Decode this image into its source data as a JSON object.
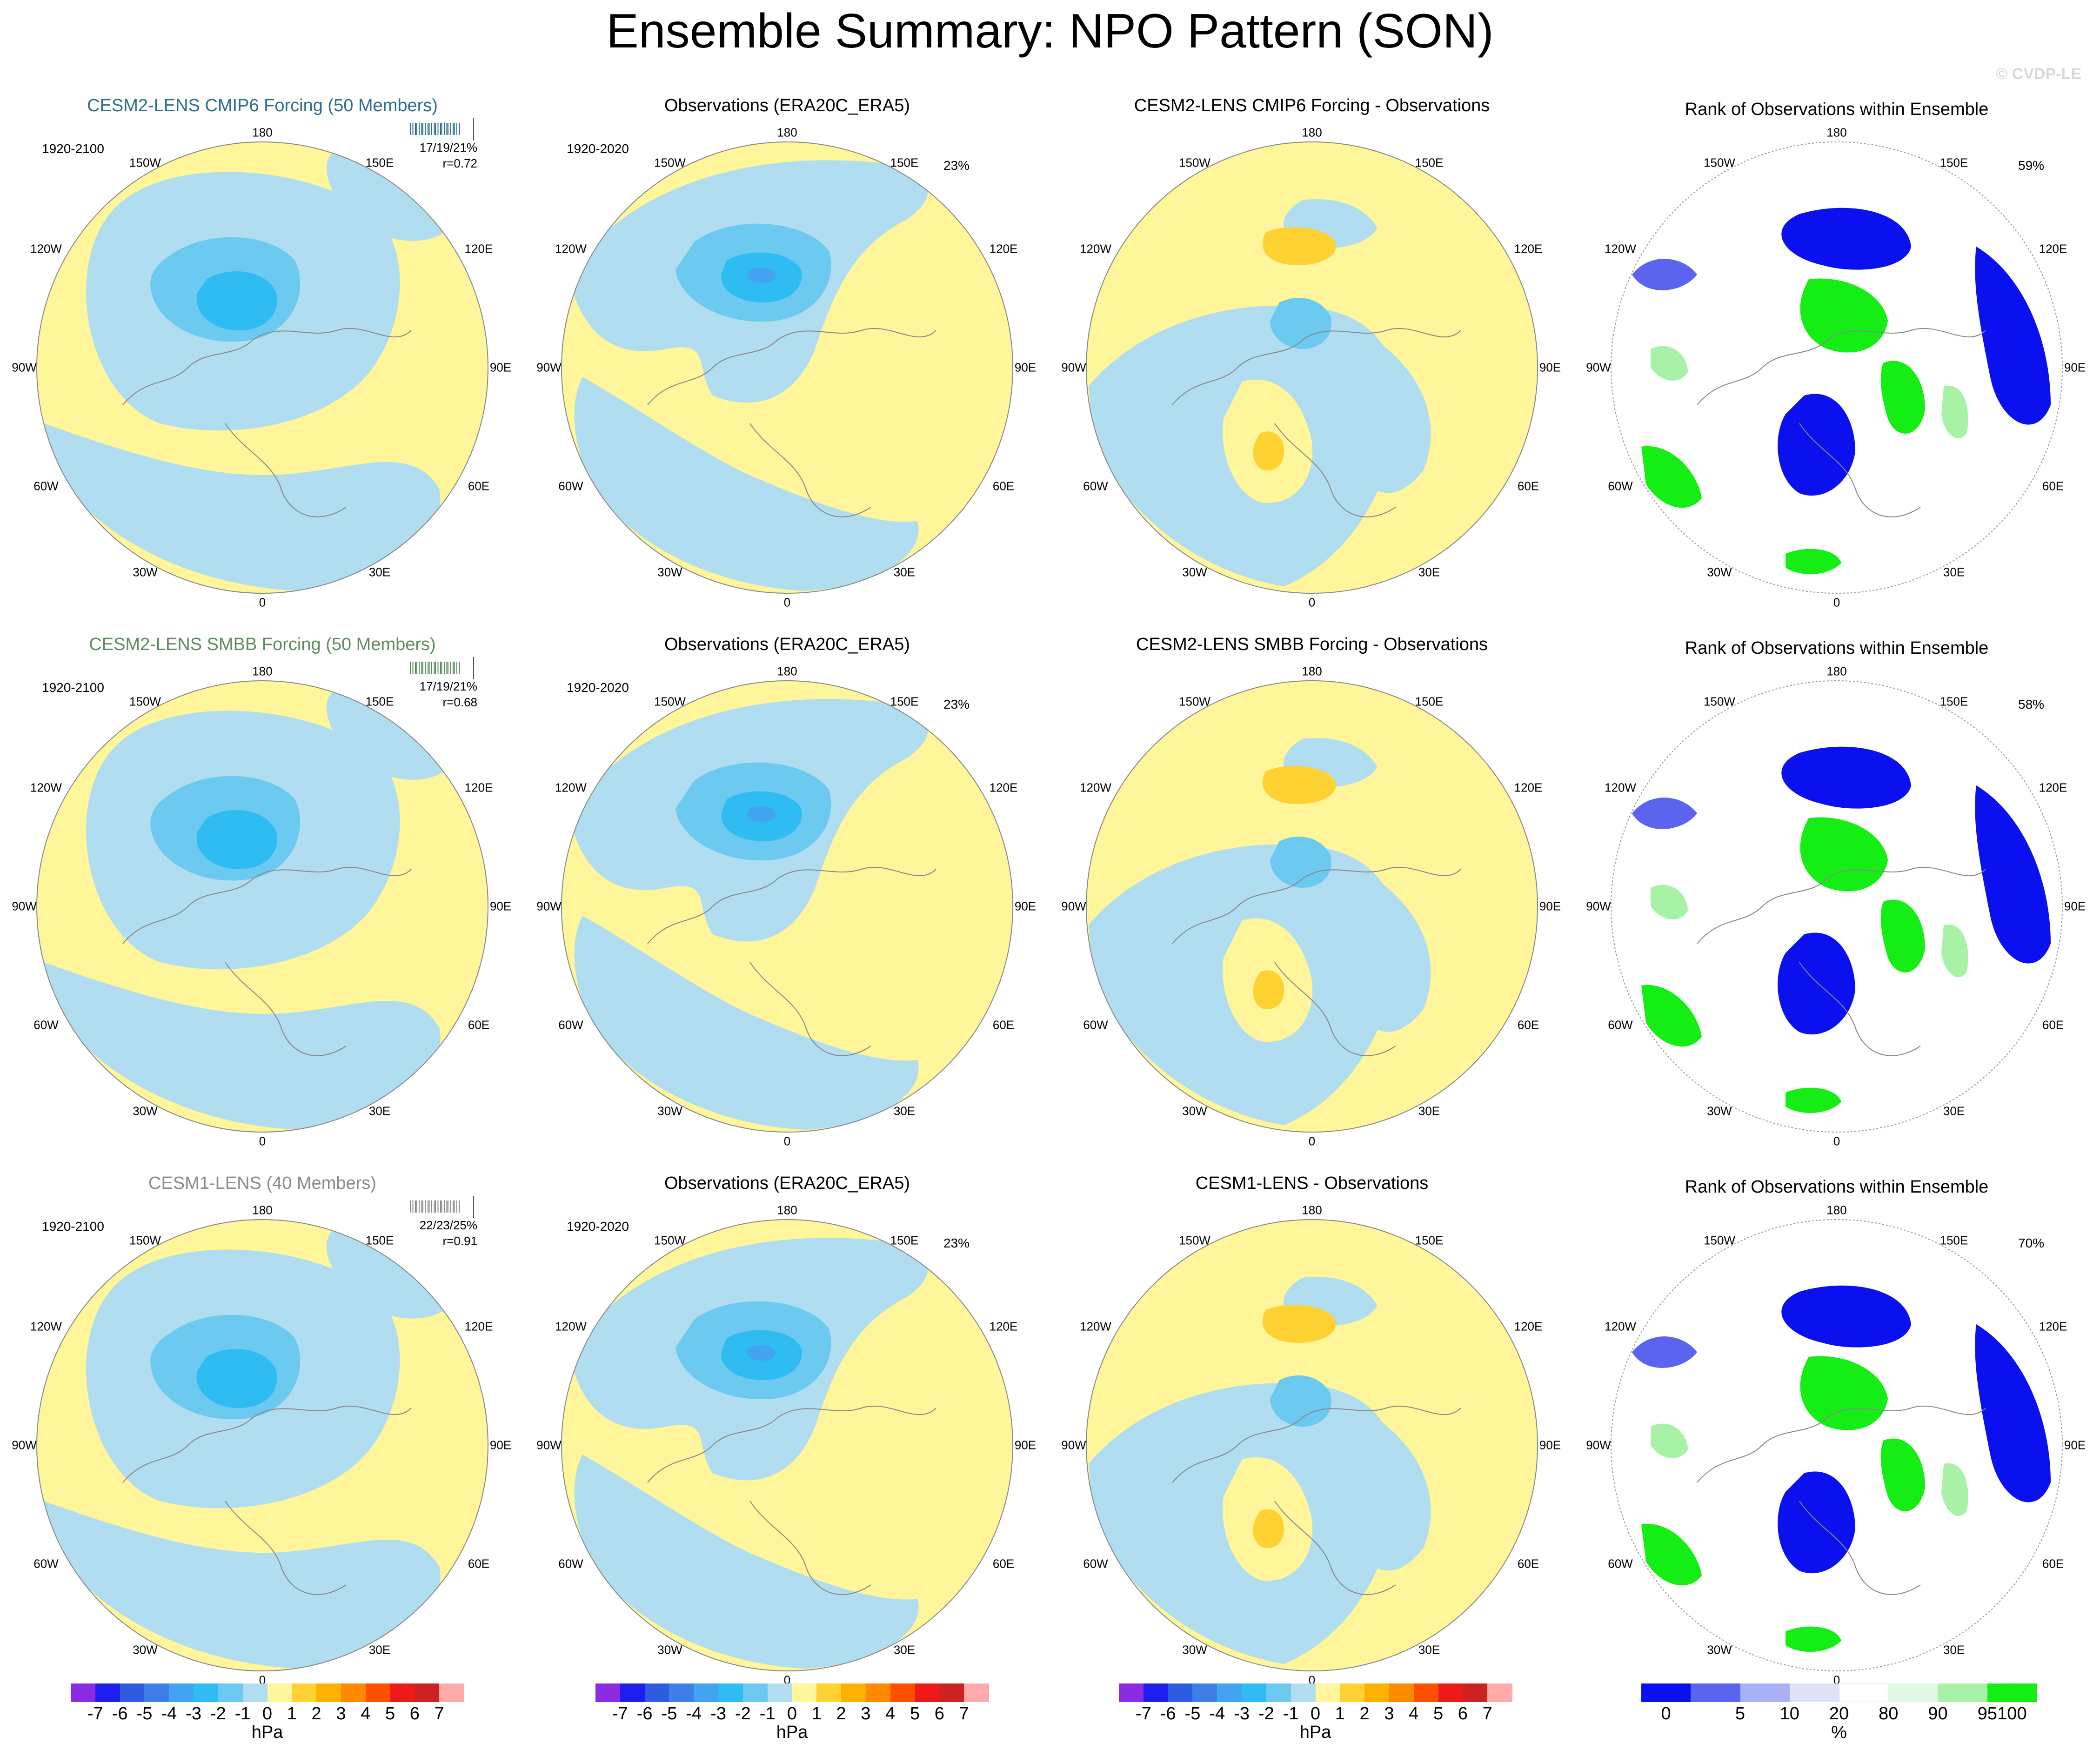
{
  "title": "Ensemble Summary: NPO Pattern (SON)",
  "watermark": "© CVDP-LE",
  "map_labels": {
    "top": "180",
    "bottom": "0",
    "upper_left": "150W",
    "upper_right": "150E",
    "mid_upper_left": "120W",
    "mid_upper_right": "120E",
    "left": "90W",
    "right": "90E",
    "mid_lower_left": "60W",
    "mid_lower_right": "60E",
    "lower_left": "30W",
    "lower_right": "30E"
  },
  "rows": [
    {
      "ensemble_title": "CESM2-LENS CMIP6 Forcing (50 Members)",
      "ensemble_color": "#2b6f8a",
      "ensemble_years": "1920-2100",
      "stats_pct": "17/19/21%",
      "stats_r": "r=0.72",
      "obs_title": "Observations (ERA20C_ERA5)",
      "obs_years": "1920-2020",
      "obs_pct": "23%",
      "diff_title": "CESM2-LENS CMIP6 Forcing - Observations",
      "rank_title": "Rank of Observations within Ensemble",
      "rank_pct": "59%"
    },
    {
      "ensemble_title": "CESM2-LENS SMBB Forcing (50 Members)",
      "ensemble_color": "#5e8a5e",
      "ensemble_years": "1920-2100",
      "stats_pct": "17/19/21%",
      "stats_r": "r=0.68",
      "obs_title": "Observations (ERA20C_ERA5)",
      "obs_years": "1920-2020",
      "obs_pct": "23%",
      "diff_title": "CESM2-LENS SMBB Forcing - Observations",
      "rank_title": "Rank of Observations within Ensemble",
      "rank_pct": "58%"
    },
    {
      "ensemble_title": "CESM1-LENS (40 Members)",
      "ensemble_color": "#8a8a8a",
      "ensemble_years": "1920-2100",
      "stats_pct": "22/23/25%",
      "stats_r": "r=0.91",
      "obs_title": "Observations (ERA20C_ERA5)",
      "obs_years": "1920-2020",
      "obs_pct": "23%",
      "diff_title": "CESM1-LENS - Observations",
      "rank_title": "Rank of Observations within Ensemble",
      "rank_pct": "70%"
    }
  ],
  "colorbar_hpa": {
    "labels": [
      "-7",
      "-6",
      "-5",
      "-4",
      "-3",
      "-2",
      "-1",
      "0",
      "1",
      "2",
      "3",
      "4",
      "5",
      "6",
      "7"
    ],
    "unit": "hPa",
    "colors": [
      "#8b2be2",
      "#1e1ef0",
      "#2e5be0",
      "#3d7fe6",
      "#42a3f0",
      "#2ebcf2",
      "#6cc9ef",
      "#b0ddef",
      "#fff59a",
      "#ffd233",
      "#ffb000",
      "#ff8a00",
      "#ff5000",
      "#ee1a1a",
      "#cc2222",
      "#ffaaaa"
    ]
  },
  "colorbar_rank": {
    "labels": [
      "0",
      "5",
      "10",
      "20",
      "80",
      "90",
      "95",
      "100"
    ],
    "unit": "%",
    "colors": [
      "#0a10ee",
      "#5a64ee",
      "#aab0f4",
      "#e0e2f8",
      "#ffffff",
      "#e2f8e2",
      "#a8f2a8",
      "#14ee14"
    ]
  }
}
